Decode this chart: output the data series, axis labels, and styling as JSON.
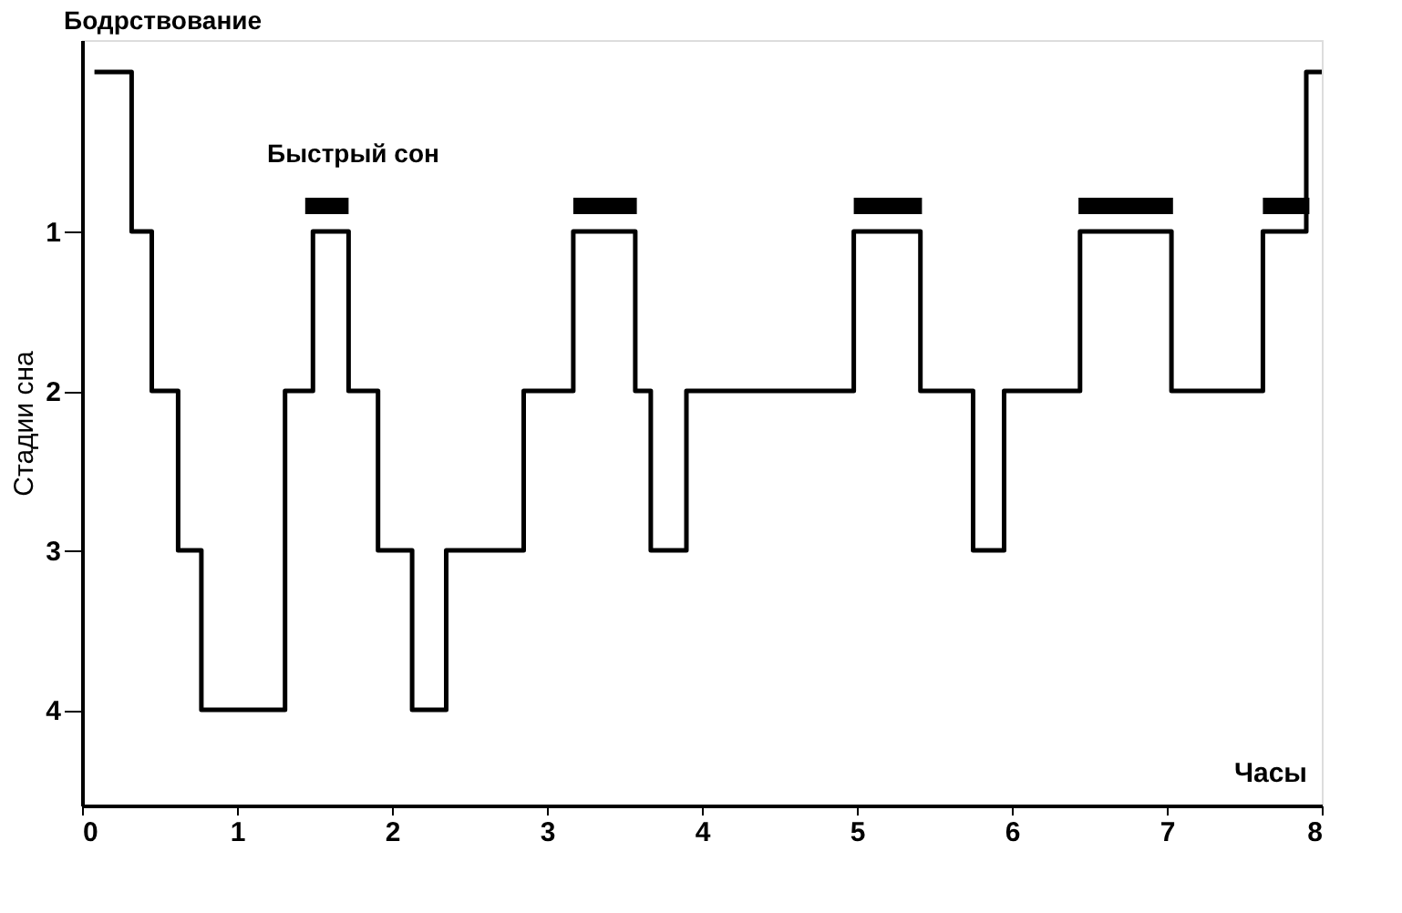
{
  "chart_data": {
    "type": "step",
    "xlabel": "Часы",
    "ylabel": "Стадии сна",
    "xlim": [
      0,
      8
    ],
    "xticks": [
      0,
      1,
      2,
      3,
      4,
      5,
      6,
      7,
      8
    ],
    "ylim": [
      4.6,
      -0.2
    ],
    "yticks": [
      1,
      2,
      3,
      4
    ],
    "grid": false,
    "marker": "none",
    "line_style": "solid",
    "series": [
      {
        "color": "#000000",
        "x": [
          0.08,
          0.32,
          0.45,
          0.62,
          0.77,
          1.31,
          1.49,
          1.72,
          1.91,
          2.13,
          2.35,
          2.85,
          3.17,
          3.57,
          3.67,
          3.9,
          4.98,
          5.41,
          5.75,
          5.95,
          6.44,
          7.03,
          7.62,
          7.9,
          8.0
        ],
        "values": [
          0,
          1,
          2,
          3,
          4,
          2,
          1,
          2,
          3,
          4,
          3,
          2,
          1,
          2,
          3,
          2,
          1,
          2,
          3,
          2,
          1,
          2,
          1,
          0,
          0
        ]
      },
      {
        "type": "line",
        "color": "#000000",
        "x": [
          1.44,
          1.72
        ],
        "values": [
          0.84,
          0.84
        ]
      },
      {
        "type": "line",
        "color": "#000000",
        "x": [
          3.17,
          3.58
        ],
        "values": [
          0.84,
          0.84
        ]
      },
      {
        "type": "line",
        "color": "#000000",
        "x": [
          4.98,
          5.42
        ],
        "values": [
          0.84,
          0.84
        ]
      },
      {
        "type": "line",
        "color": "#000000",
        "x": [
          6.43,
          7.04
        ],
        "values": [
          0.84,
          0.84
        ]
      },
      {
        "type": "line",
        "color": "#000000",
        "x": [
          7.62,
          7.92
        ],
        "values": [
          0.84,
          0.84
        ]
      }
    ],
    "annotations": [
      "Бодрствование",
      {
        "text": "Быстрый сон",
        "x": 1.75,
        "y": 0.84
      }
    ]
  }
}
